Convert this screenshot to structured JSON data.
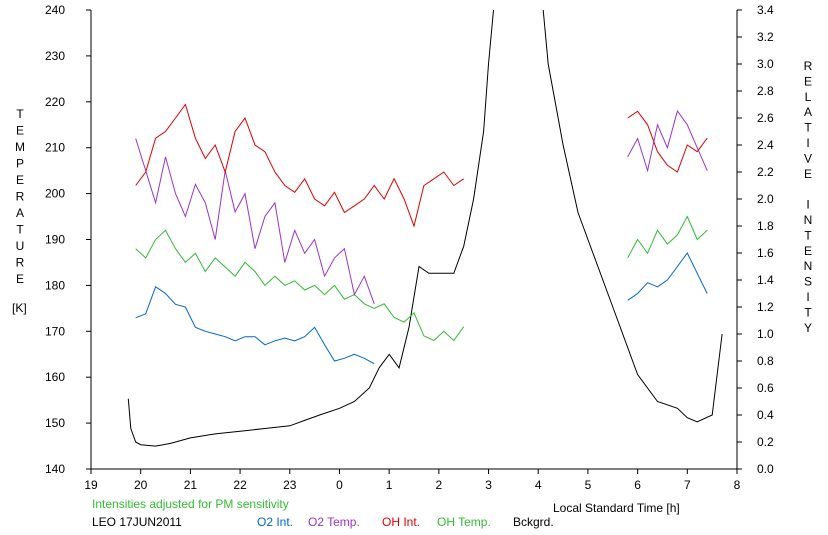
{
  "chart_data": {
    "type": "line",
    "xlabel": "Local Standard Time [h]",
    "y_left_label_letters": [
      "T",
      "E",
      "M",
      "P",
      "E",
      "R",
      "A",
      "T",
      "U",
      "R",
      "E"
    ],
    "y_left_unit": "[K]",
    "y_right_label_letters": [
      "R",
      "E",
      "L",
      "A",
      "T",
      "I",
      "V",
      "E",
      "",
      "I",
      "N",
      "T",
      "E",
      "N",
      "S",
      "I",
      "T",
      "Y"
    ],
    "note": "Intensities adjusted for PM sensitivity",
    "station_date": "LEO 17JUN2011",
    "x_ticks": [
      19,
      20,
      21,
      22,
      23,
      0,
      1,
      2,
      3,
      4,
      5,
      6,
      7,
      8
    ],
    "y_left_ticks": [
      140,
      150,
      160,
      170,
      180,
      190,
      200,
      210,
      220,
      230,
      240
    ],
    "y_right_ticks": [
      "0.0",
      "0.2",
      "0.4",
      "0.6",
      "0.8",
      "1.0",
      "1.2",
      "1.4",
      "1.6",
      "1.8",
      "2.0",
      "2.2",
      "2.4",
      "2.6",
      "2.8",
      "3.0",
      "3.2",
      "3.4"
    ],
    "xlim": [
      19,
      32
    ],
    "ylim_left": [
      140,
      240
    ],
    "ylim_right": [
      0,
      3.4
    ],
    "colors": {
      "o2_int": "#0066cc",
      "o2_temp": "#9933cc",
      "oh_int": "#dd0000",
      "oh_temp": "#33bb33",
      "bckgrd": "#000000",
      "note": "#33bb33"
    },
    "series": [
      {
        "name": "O2 Int.",
        "axis": "right",
        "color": "#0066cc",
        "segments": [
          {
            "x": [
              19.9,
              20.1,
              20.3,
              20.5,
              20.7,
              20.9,
              21.1,
              21.3,
              21.5,
              21.7,
              21.9,
              22.1,
              22.3,
              22.5,
              22.7,
              22.9,
              23.1,
              23.3,
              23.5,
              23.7,
              23.9,
              24.1,
              24.3,
              24.5,
              24.7
            ],
            "y": [
              1.12,
              1.15,
              1.35,
              1.3,
              1.22,
              1.2,
              1.05,
              1.02,
              1.0,
              0.98,
              0.95,
              0.98,
              0.98,
              0.92,
              0.95,
              0.97,
              0.95,
              0.98,
              1.05,
              0.92,
              0.8,
              0.82,
              0.85,
              0.82,
              0.78
            ]
          },
          {
            "x": [
              29.8,
              30.0,
              30.2,
              30.4,
              30.6,
              30.8,
              31.0,
              31.2,
              31.4
            ],
            "y": [
              1.25,
              1.3,
              1.38,
              1.35,
              1.4,
              1.5,
              1.6,
              1.45,
              1.3
            ]
          }
        ]
      },
      {
        "name": "O2 Temp.",
        "axis": "left",
        "color": "#9933cc",
        "segments": [
          {
            "x": [
              19.9,
              20.1,
              20.3,
              20.5,
              20.7,
              20.9,
              21.1,
              21.3,
              21.5,
              21.7,
              21.9,
              22.1,
              22.3,
              22.5,
              22.7,
              22.9,
              23.1,
              23.3,
              23.5,
              23.7,
              23.9,
              24.1,
              24.3,
              24.5,
              24.7
            ],
            "y": [
              212,
              205,
              198,
              208,
              200,
              195,
              202,
              198,
              190,
              205,
              196,
              200,
              188,
              195,
              198,
              185,
              192,
              187,
              190,
              182,
              186,
              188,
              178,
              182,
              176
            ]
          },
          {
            "x": [
              29.8,
              30.0,
              30.2,
              30.4,
              30.6,
              30.8,
              31.0,
              31.2,
              31.4
            ],
            "y": [
              208,
              212,
              205,
              215,
              210,
              218,
              215,
              210,
              205
            ]
          }
        ]
      },
      {
        "name": "OH Int.",
        "axis": "right",
        "color": "#dd0000",
        "segments": [
          {
            "x": [
              19.9,
              20.1,
              20.3,
              20.5,
              20.7,
              20.9,
              21.1,
              21.3,
              21.5,
              21.7,
              21.9,
              22.1,
              22.3,
              22.5,
              22.7,
              22.9,
              23.1,
              23.3,
              23.5,
              23.7,
              23.9,
              24.1,
              24.3,
              24.5,
              24.7,
              24.9,
              25.1,
              25.3,
              25.5,
              25.7,
              25.9,
              26.1,
              26.3,
              26.5
            ],
            "y": [
              2.1,
              2.2,
              2.45,
              2.5,
              2.6,
              2.7,
              2.45,
              2.3,
              2.4,
              2.2,
              2.5,
              2.6,
              2.4,
              2.35,
              2.2,
              2.1,
              2.05,
              2.15,
              2.0,
              1.95,
              2.05,
              1.9,
              1.95,
              2.0,
              2.1,
              2.0,
              2.15,
              2.0,
              1.8,
              2.1,
              2.15,
              2.2,
              2.1,
              2.15
            ]
          },
          {
            "x": [
              29.8,
              30.0,
              30.2,
              30.4,
              30.6,
              30.8,
              31.0,
              31.2,
              31.4
            ],
            "y": [
              2.6,
              2.65,
              2.55,
              2.35,
              2.25,
              2.2,
              2.4,
              2.35,
              2.45
            ]
          }
        ]
      },
      {
        "name": "OH Temp.",
        "axis": "left",
        "color": "#33bb33",
        "segments": [
          {
            "x": [
              19.9,
              20.1,
              20.3,
              20.5,
              20.7,
              20.9,
              21.1,
              21.3,
              21.5,
              21.7,
              21.9,
              22.1,
              22.3,
              22.5,
              22.7,
              22.9,
              23.1,
              23.3,
              23.5,
              23.7,
              23.9,
              24.1,
              24.3,
              24.5,
              24.7,
              24.9,
              25.1,
              25.3,
              25.5,
              25.7,
              25.9,
              26.1,
              26.3,
              26.5
            ],
            "y": [
              188,
              186,
              190,
              192,
              188,
              185,
              187,
              183,
              186,
              184,
              182,
              185,
              183,
              180,
              182,
              180,
              181,
              179,
              180,
              178,
              180,
              177,
              178,
              176,
              175,
              176,
              173,
              172,
              174,
              169,
              168,
              170,
              168,
              171
            ]
          },
          {
            "x": [
              29.8,
              30.0,
              30.2,
              30.4,
              30.6,
              30.8,
              31.0,
              31.2,
              31.4
            ],
            "y": [
              186,
              190,
              187,
              192,
              189,
              191,
              195,
              190,
              192
            ]
          }
        ]
      },
      {
        "name": "Bckgrd.",
        "axis": "right",
        "color": "#000000",
        "segments": [
          {
            "x": [
              19.75,
              19.8,
              19.9,
              20.0,
              20.3,
              20.6,
              21.0,
              21.5,
              22.0,
              22.5,
              23.0,
              23.3,
              23.6,
              24.0,
              24.3,
              24.6,
              24.8,
              25.0,
              25.2,
              25.4,
              25.6,
              25.8,
              26.0,
              26.3,
              26.5,
              26.7,
              26.9,
              27.0,
              27.1
            ],
            "y": [
              0.52,
              0.3,
              0.2,
              0.18,
              0.17,
              0.19,
              0.23,
              0.26,
              0.28,
              0.3,
              0.32,
              0.36,
              0.4,
              0.45,
              0.5,
              0.6,
              0.75,
              0.85,
              0.75,
              1.05,
              1.5,
              1.45,
              1.45,
              1.45,
              1.65,
              2.0,
              2.5,
              3.0,
              3.4
            ]
          },
          {
            "x": [
              28.1,
              28.2,
              28.5,
              28.8,
              29.1,
              29.5,
              30.0,
              30.4,
              30.8,
              31.0,
              31.2,
              31.5,
              31.7
            ],
            "y": [
              3.4,
              3.0,
              2.4,
              1.9,
              1.6,
              1.2,
              0.7,
              0.5,
              0.45,
              0.38,
              0.35,
              0.4,
              1.0
            ]
          }
        ]
      }
    ],
    "legend": [
      {
        "label": "O2 Int.",
        "color": "#0066cc"
      },
      {
        "label": "O2 Temp.",
        "color": "#9933cc"
      },
      {
        "label": "OH Int.",
        "color": "#dd0000"
      },
      {
        "label": "OH Temp.",
        "color": "#33bb33"
      },
      {
        "label": "Bckgrd.",
        "color": "#000000"
      }
    ]
  }
}
